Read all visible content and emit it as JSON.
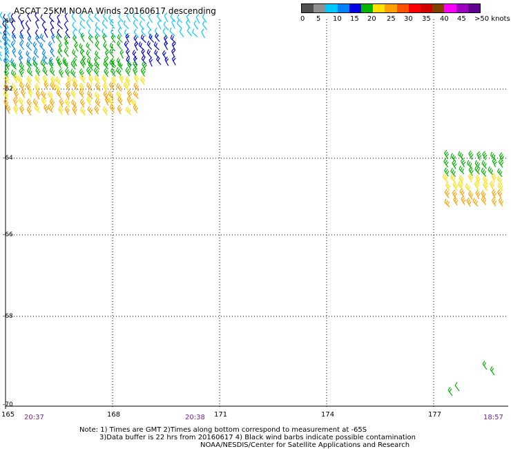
{
  "title": "ASCAT 25KM NOAA Winds 20160617 descending",
  "legend": {
    "labels": [
      "0",
      "5",
      "10",
      "15",
      "20",
      "25",
      "30",
      "35",
      "40",
      "45",
      ">50 knots"
    ],
    "colors": [
      "#505050",
      "#909090",
      "#00c8ff",
      "#0080ff",
      "#0000e0",
      "#00b400",
      "#ffe000",
      "#ffa000",
      "#ff5000",
      "#ff0000",
      "#d00000",
      "#804000",
      "#ff00ff",
      "#a000c0",
      "#600090"
    ]
  },
  "lat_labels": [
    "-60",
    "-62",
    "-64",
    "-66",
    "-68",
    "-70"
  ],
  "lon_labels": [
    "165",
    "168",
    "171",
    "174",
    "177"
  ],
  "times": [
    "20:37",
    "20:38",
    "18:57"
  ],
  "notes": [
    "Note: 1) Times are GMT 2)Times along bottom correspond to measurement at -65S",
    "3)Data buffer is 22 hrs from 20160617 4) Black wind barbs indicate possible contamination",
    "NOAA/NESDIS/Center for Satellite Applications and Research"
  ]
}
